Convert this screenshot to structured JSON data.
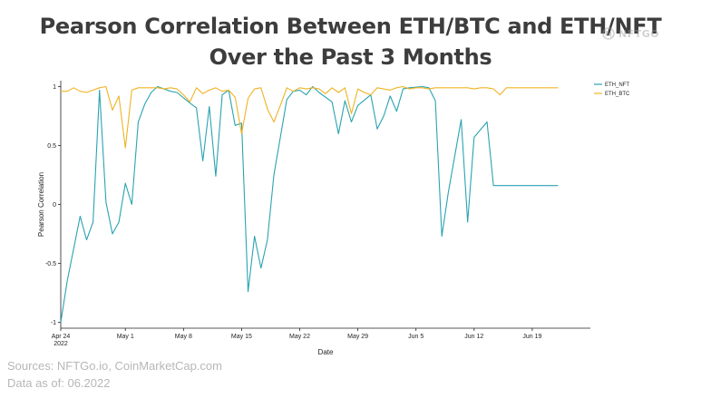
{
  "title_line1": "Pearson Correlation Between ETH/BTC and ETH/NFT",
  "title_line2": "Over the Past 3 Months",
  "logo": {
    "text": "NFTGO",
    "icon": "nftgo-logo-icon"
  },
  "footer": {
    "sources": "Sources: NFTGo.io, CoinMarketCap.com",
    "data_as_of": "Data as of: 06.2022"
  },
  "colors": {
    "eth_nft": "#2aa3b0",
    "eth_btc": "#f0b323",
    "axis": "#222222",
    "title": "#3d3d3d",
    "footer": "#b7b7b7"
  },
  "chart_data": {
    "type": "line",
    "xlabel": "Date",
    "ylabel": "Pearson Correlation",
    "xlim": [
      0,
      82
    ],
    "ylim": [
      -1.05,
      1.05
    ],
    "x_ticks": [
      {
        "x": 0,
        "line1": "Apr 24",
        "line2": "2022"
      },
      {
        "x": 10,
        "line1": "May 1",
        "line2": ""
      },
      {
        "x": 19,
        "line1": "May 8",
        "line2": ""
      },
      {
        "x": 28,
        "line1": "May 15",
        "line2": ""
      },
      {
        "x": 37,
        "line1": "May 22",
        "line2": ""
      },
      {
        "x": 46,
        "line1": "May 29",
        "line2": ""
      },
      {
        "x": 55,
        "line1": "Jun 5",
        "line2": ""
      },
      {
        "x": 64,
        "line1": "Jun 12",
        "line2": ""
      },
      {
        "x": 73,
        "line1": "Jun 19",
        "line2": ""
      }
    ],
    "y_ticks": [
      {
        "value": 1,
        "label": "1"
      },
      {
        "value": 0.5,
        "label": "0.5"
      },
      {
        "value": 0,
        "label": "0"
      },
      {
        "value": -0.5,
        "label": "-0.5"
      },
      {
        "value": -1,
        "label": "-1"
      }
    ],
    "legend_position": "top-right",
    "series": [
      {
        "name": "ETH_NFT",
        "color": "#2aa3b0",
        "x": [
          0,
          1,
          3,
          4,
          5,
          6,
          7,
          8,
          9,
          10,
          11,
          12,
          13,
          14,
          15,
          17,
          18,
          20,
          21,
          22,
          23,
          24,
          25,
          26,
          27,
          28,
          29,
          30,
          31,
          32,
          33,
          35,
          36,
          37,
          38,
          39,
          40,
          42,
          43,
          44,
          45,
          46,
          48,
          49,
          50,
          51,
          52,
          53,
          54,
          56,
          57,
          58,
          59,
          60,
          62,
          63,
          64,
          66,
          67,
          68,
          69,
          70,
          71,
          73,
          74,
          75,
          76,
          77
        ],
        "values": [
          -1.0,
          -0.65,
          -0.1,
          -0.3,
          -0.15,
          0.97,
          0.02,
          -0.25,
          -0.15,
          0.18,
          0.0,
          0.7,
          0.85,
          0.95,
          1.0,
          0.96,
          0.95,
          0.86,
          0.82,
          0.37,
          0.83,
          0.24,
          0.93,
          0.97,
          0.67,
          0.69,
          -0.74,
          -0.27,
          -0.54,
          -0.3,
          0.25,
          0.89,
          0.96,
          0.97,
          0.93,
          1.0,
          0.95,
          0.87,
          0.6,
          0.88,
          0.7,
          0.84,
          0.93,
          0.64,
          0.75,
          0.92,
          0.79,
          0.98,
          0.99,
          1.0,
          0.99,
          0.88,
          -0.27,
          0.1,
          0.72,
          -0.15,
          0.57,
          0.7,
          0.16,
          0.16,
          0.16,
          0.16,
          0.16,
          0.16,
          0.16,
          0.16,
          0.16,
          0.16
        ]
      },
      {
        "name": "ETH_BTC",
        "color": "#f0b323",
        "x": [
          0,
          1,
          2,
          3,
          4,
          5,
          6,
          7,
          8,
          9,
          10,
          11,
          12,
          13,
          14,
          15,
          16,
          17,
          18,
          19,
          20,
          21,
          22,
          23,
          24,
          25,
          26,
          27,
          28,
          29,
          30,
          31,
          32,
          33,
          34,
          35,
          36,
          37,
          38,
          39,
          40,
          41,
          42,
          43,
          44,
          45,
          46,
          47,
          48,
          49,
          50,
          51,
          52,
          53,
          54,
          55,
          56,
          57,
          58,
          59,
          60,
          61,
          62,
          63,
          64,
          65,
          66,
          67,
          68,
          69,
          70,
          71,
          72,
          73,
          74,
          75,
          76,
          77
        ],
        "values": [
          0.96,
          0.96,
          0.99,
          0.96,
          0.95,
          0.97,
          0.99,
          1.0,
          0.8,
          0.92,
          0.48,
          0.97,
          0.99,
          0.99,
          0.99,
          0.99,
          0.98,
          0.99,
          0.98,
          0.93,
          0.87,
          0.99,
          0.94,
          0.97,
          0.99,
          0.96,
          0.97,
          0.91,
          0.6,
          0.9,
          0.98,
          0.99,
          0.81,
          0.7,
          0.84,
          0.99,
          0.96,
          0.99,
          0.98,
          0.99,
          0.98,
          0.94,
          0.99,
          0.95,
          0.99,
          0.77,
          0.98,
          0.95,
          0.93,
          0.99,
          0.98,
          0.97,
          0.99,
          1.0,
          0.98,
          0.99,
          0.99,
          0.98,
          0.99,
          0.99,
          0.99,
          0.99,
          0.99,
          0.99,
          0.98,
          0.99,
          0.99,
          0.98,
          0.93,
          0.99,
          0.99,
          0.99,
          0.99,
          0.99,
          0.99,
          0.99,
          0.99,
          0.99
        ]
      }
    ]
  }
}
